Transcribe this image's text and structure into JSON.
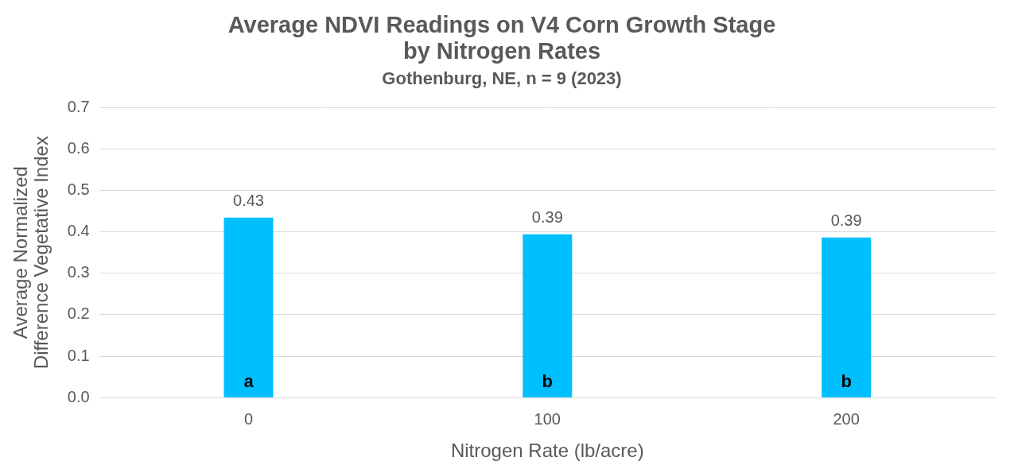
{
  "chart_data": {
    "type": "bar",
    "title": [
      "Average NDVI Readings on V4 Corn Growth Stage",
      "by Nitrogen Rates"
    ],
    "subtitle": "Gothenburg, NE, n = 9 (2023)",
    "x_label": "Nitrogen Rate (lb/acre)",
    "y_label": [
      "Average Normalized",
      "Difference Vegetative Index"
    ],
    "categories": [
      "0",
      "100",
      "200"
    ],
    "values": [
      0.434,
      0.394,
      0.386
    ],
    "value_labels": [
      "0.43",
      "0.39",
      "0.39"
    ],
    "annotations": [
      "a",
      "b",
      "b"
    ],
    "color": "#00bfff",
    "ylim": [
      0,
      0.7
    ],
    "yticks": [
      {
        "value": 0,
        "label": "0.0"
      },
      0.1,
      0.2,
      0.3,
      0.4,
      0.5,
      0.6,
      0.7
    ],
    "grid": true,
    "data_labels": true
  }
}
